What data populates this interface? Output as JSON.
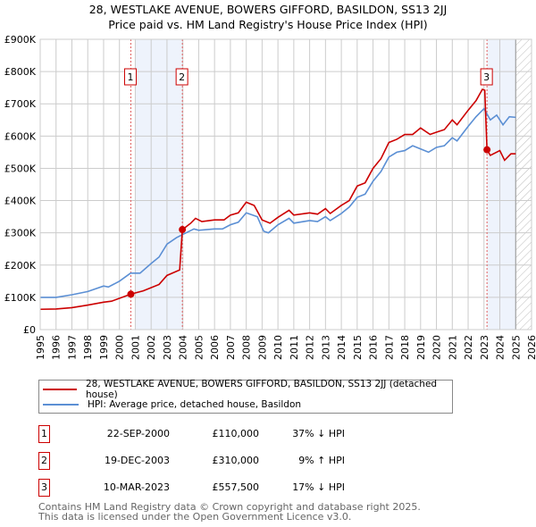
{
  "title": "28, WESTLAKE AVENUE, BOWERS GIFFORD, BASILDON, SS13 2JJ",
  "subtitle": "Price paid vs. HM Land Registry's House Price Index (HPI)",
  "chart_data": {
    "type": "line",
    "title": "28, WESTLAKE AVENUE, BOWERS GIFFORD, BASILDON, SS13 2JJ",
    "subtitle": "Price paid vs. HM Land Registry's House Price Index (HPI)",
    "xlim": [
      1995,
      2026
    ],
    "ylim": [
      0,
      900000
    ],
    "y_ticks": [
      "£0",
      "£100K",
      "£200K",
      "£300K",
      "£400K",
      "£500K",
      "£600K",
      "£700K",
      "£800K",
      "£900K"
    ],
    "x_ticks": [
      "1995",
      "1996",
      "1997",
      "1998",
      "1999",
      "2000",
      "2001",
      "2002",
      "2003",
      "2004",
      "2005",
      "2006",
      "2007",
      "2008",
      "2009",
      "2010",
      "2011",
      "2012",
      "2013",
      "2014",
      "2015",
      "2016",
      "2017",
      "2018",
      "2019",
      "2020",
      "2021",
      "2022",
      "2023",
      "2024",
      "2025",
      "2026"
    ],
    "grid": true,
    "colors": {
      "property": "#cc0000",
      "hpi": "#5b8fd4",
      "shade": "#eef3fc"
    },
    "shaded_ranges": [
      [
        2001.0,
        2003.97
      ],
      [
        2023.19,
        2025.0
      ]
    ],
    "hatched_range": [
      2025.0,
      2026
    ],
    "series": [
      {
        "name": "28, WESTLAKE AVENUE, BOWERS GIFFORD, BASILDON, SS13 2JJ (detached house)",
        "points": [
          [
            1995,
            63
          ],
          [
            1996,
            64
          ],
          [
            1997,
            68
          ],
          [
            1998,
            76
          ],
          [
            1999,
            85
          ],
          [
            1999.5,
            88
          ],
          [
            2000.72,
            110
          ],
          [
            2001.5,
            120
          ],
          [
            2002.5,
            140
          ],
          [
            2003,
            168
          ],
          [
            2003.8,
            185
          ],
          [
            2003.97,
            310
          ],
          [
            2004.5,
            330
          ],
          [
            2004.8,
            345
          ],
          [
            2005.2,
            335
          ],
          [
            2006,
            340
          ],
          [
            2006.6,
            340
          ],
          [
            2007,
            355
          ],
          [
            2007.5,
            362
          ],
          [
            2008,
            395
          ],
          [
            2008.5,
            385
          ],
          [
            2009,
            340
          ],
          [
            2009.5,
            330
          ],
          [
            2010,
            348
          ],
          [
            2010.7,
            370
          ],
          [
            2011,
            355
          ],
          [
            2012,
            362
          ],
          [
            2012.5,
            358
          ],
          [
            2013,
            375
          ],
          [
            2013.3,
            360
          ],
          [
            2014,
            385
          ],
          [
            2014.5,
            400
          ],
          [
            2015,
            445
          ],
          [
            2015.5,
            455
          ],
          [
            2016,
            500
          ],
          [
            2016.5,
            530
          ],
          [
            2017,
            580
          ],
          [
            2017.5,
            590
          ],
          [
            2018,
            605
          ],
          [
            2018.5,
            605
          ],
          [
            2019,
            625
          ],
          [
            2019.6,
            605
          ],
          [
            2020,
            612
          ],
          [
            2020.5,
            620
          ],
          [
            2021,
            650
          ],
          [
            2021.3,
            635
          ],
          [
            2022,
            680
          ],
          [
            2022.5,
            710
          ],
          [
            2022.9,
            745
          ],
          [
            2023.05,
            742
          ],
          [
            2023.19,
            557.5
          ],
          [
            2023.4,
            540
          ],
          [
            2024,
            555
          ],
          [
            2024.3,
            525
          ],
          [
            2024.7,
            545
          ],
          [
            2025,
            545
          ]
        ]
      },
      {
        "name": "HPI: Average price, detached house, Basildon",
        "points": [
          [
            1995,
            100
          ],
          [
            1996,
            100
          ],
          [
            1997,
            108
          ],
          [
            1998,
            118
          ],
          [
            1999,
            135
          ],
          [
            1999.3,
            132
          ],
          [
            2000,
            150
          ],
          [
            2000.7,
            175
          ],
          [
            2001.3,
            175
          ],
          [
            2002,
            205
          ],
          [
            2002.5,
            225
          ],
          [
            2003,
            265
          ],
          [
            2003.6,
            285
          ],
          [
            2004,
            295
          ],
          [
            2004.7,
            312
          ],
          [
            2005,
            308
          ],
          [
            2006,
            312
          ],
          [
            2006.5,
            312
          ],
          [
            2007,
            325
          ],
          [
            2007.5,
            333
          ],
          [
            2008,
            362
          ],
          [
            2008.7,
            350
          ],
          [
            2009.1,
            305
          ],
          [
            2009.4,
            300
          ],
          [
            2010,
            325
          ],
          [
            2010.7,
            345
          ],
          [
            2011,
            330
          ],
          [
            2012,
            338
          ],
          [
            2012.5,
            335
          ],
          [
            2013,
            350
          ],
          [
            2013.3,
            338
          ],
          [
            2014,
            360
          ],
          [
            2014.5,
            380
          ],
          [
            2015,
            410
          ],
          [
            2015.5,
            420
          ],
          [
            2016,
            460
          ],
          [
            2016.5,
            490
          ],
          [
            2017,
            535
          ],
          [
            2017.5,
            550
          ],
          [
            2018,
            555
          ],
          [
            2018.5,
            570
          ],
          [
            2019,
            560
          ],
          [
            2019.5,
            550
          ],
          [
            2020,
            565
          ],
          [
            2020.5,
            570
          ],
          [
            2021,
            595
          ],
          [
            2021.3,
            585
          ],
          [
            2022,
            630
          ],
          [
            2022.5,
            660
          ],
          [
            2023,
            685
          ],
          [
            2023.4,
            650
          ],
          [
            2023.8,
            665
          ],
          [
            2024.2,
            635
          ],
          [
            2024.6,
            660
          ],
          [
            2025,
            658
          ]
        ]
      }
    ],
    "sales": [
      {
        "label": "1",
        "x": 2000.72,
        "price": 110000
      },
      {
        "label": "2",
        "x": 2003.97,
        "price": 310000
      },
      {
        "label": "3",
        "x": 2023.19,
        "price": 557500
      }
    ],
    "legend_placement": "below"
  },
  "legend": {
    "property": "28, WESTLAKE AVENUE, BOWERS GIFFORD, BASILDON, SS13 2JJ (detached house)",
    "hpi": "HPI: Average price, detached house, Basildon"
  },
  "table": [
    {
      "num": "1",
      "date": "22-SEP-2000",
      "price": "£110,000",
      "hpi": "37% ↓ HPI"
    },
    {
      "num": "2",
      "date": "19-DEC-2003",
      "price": "£310,000",
      "hpi": "9% ↑ HPI"
    },
    {
      "num": "3",
      "date": "10-MAR-2023",
      "price": "£557,500",
      "hpi": "17% ↓ HPI"
    }
  ],
  "footer": {
    "line1": "Contains HM Land Registry data © Crown copyright and database right 2025.",
    "line2": "This data is licensed under the Open Government Licence v3.0."
  }
}
